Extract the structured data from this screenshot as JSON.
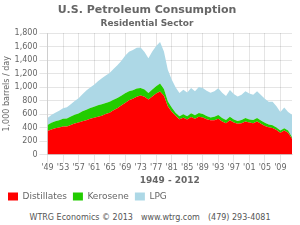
{
  "chart_data": {
    "type": "area",
    "title": "U.S. Petroleum Consumption",
    "subtitle": "Residential Sector",
    "xlabel": "1949 - 2012",
    "ylabel": "1,000 barrels / day",
    "annotations": [
      "WTRG Economics © 2013",
      "www.wtrg.com",
      "(479) 293-4081"
    ],
    "x": [
      1949,
      1950,
      1951,
      1952,
      1953,
      1954,
      1955,
      1956,
      1957,
      1958,
      1959,
      1960,
      1961,
      1962,
      1963,
      1964,
      1965,
      1966,
      1967,
      1968,
      1969,
      1970,
      1971,
      1972,
      1973,
      1974,
      1975,
      1976,
      1977,
      1978,
      1979,
      1980,
      1981,
      1982,
      1983,
      1984,
      1985,
      1986,
      1987,
      1988,
      1989,
      1990,
      1991,
      1992,
      1993,
      1994,
      1995,
      1996,
      1997,
      1998,
      1999,
      2000,
      2001,
      2002,
      2003,
      2004,
      2005,
      2006,
      2007,
      2008,
      2009,
      2010,
      2011,
      2012
    ],
    "series": [
      {
        "name": "Distillates",
        "color": "#ff0000",
        "values": [
          350,
          370,
          390,
          400,
          415,
          415,
          440,
          460,
          475,
          495,
          510,
          530,
          545,
          560,
          575,
          600,
          620,
          655,
          685,
          725,
          765,
          805,
          825,
          855,
          875,
          855,
          815,
          860,
          905,
          935,
          870,
          715,
          635,
          575,
          525,
          545,
          520,
          555,
          530,
          560,
          550,
          525,
          510,
          510,
          530,
          490,
          465,
          510,
          475,
          455,
          465,
          490,
          475,
          465,
          490,
          455,
          425,
          405,
          395,
          365,
          325,
          355,
          325,
          235
        ]
      },
      {
        "name": "Kerosene",
        "color": "#22cc00",
        "values": [
          90,
          100,
          105,
          110,
          115,
          120,
          125,
          130,
          135,
          145,
          155,
          160,
          165,
          170,
          170,
          165,
          162,
          158,
          152,
          147,
          142,
          133,
          128,
          122,
          112,
          107,
          97,
          102,
          108,
          116,
          102,
          76,
          62,
          46,
          41,
          51,
          46,
          56,
          51,
          56,
          51,
          46,
          41,
          51,
          56,
          51,
          46,
          51,
          46,
          41,
          46,
          51,
          46,
          46,
          51,
          51,
          46,
          41,
          41,
          36,
          31,
          36,
          31,
          21
        ]
      },
      {
        "name": "LPG",
        "color": "#add8e6",
        "values": [
          100,
          115,
          125,
          140,
          155,
          165,
          180,
          205,
          225,
          255,
          285,
          305,
          325,
          355,
          385,
          405,
          425,
          455,
          485,
          515,
          555,
          585,
          595,
          605,
          600,
          555,
          515,
          565,
          595,
          615,
          555,
          465,
          415,
          375,
          345,
          365,
          355,
          375,
          355,
          385,
          385,
          375,
          365,
          375,
          395,
          375,
          355,
          395,
          375,
          365,
          375,
          395,
          385,
          375,
          395,
          375,
          355,
          335,
          345,
          315,
          275,
          305,
          275,
          335
        ]
      }
    ],
    "xlim": [
      1949,
      2012
    ],
    "xticks": [
      {
        "value": 1949,
        "label": "'49"
      },
      {
        "value": 1953,
        "label": "'53"
      },
      {
        "value": 1957,
        "label": "'57"
      },
      {
        "value": 1961,
        "label": "'61"
      },
      {
        "value": 1965,
        "label": "'65"
      },
      {
        "value": 1969,
        "label": "'69"
      },
      {
        "value": 1973,
        "label": "'73"
      },
      {
        "value": 1977,
        "label": "'77"
      },
      {
        "value": 1981,
        "label": "'81"
      },
      {
        "value": 1985,
        "label": "'85"
      },
      {
        "value": 1989,
        "label": "'89"
      },
      {
        "value": 1993,
        "label": "'93"
      },
      {
        "value": 1997,
        "label": "'97"
      },
      {
        "value": 2001,
        "label": "'01"
      },
      {
        "value": 2005,
        "label": "'05"
      },
      {
        "value": 2009,
        "label": "'09"
      }
    ],
    "ylim": [
      0,
      1800
    ],
    "yticks": [
      0,
      200,
      400,
      600,
      800,
      {
        "value": 1000,
        "label": "1,000"
      },
      {
        "value": 1200,
        "label": "1,200"
      },
      {
        "value": 1400,
        "label": "1,400"
      },
      {
        "value": 1600,
        "label": "1,600"
      },
      {
        "value": 1800,
        "label": "1,800"
      }
    ],
    "stacked": true,
    "grid": true,
    "legend": "lower left"
  }
}
